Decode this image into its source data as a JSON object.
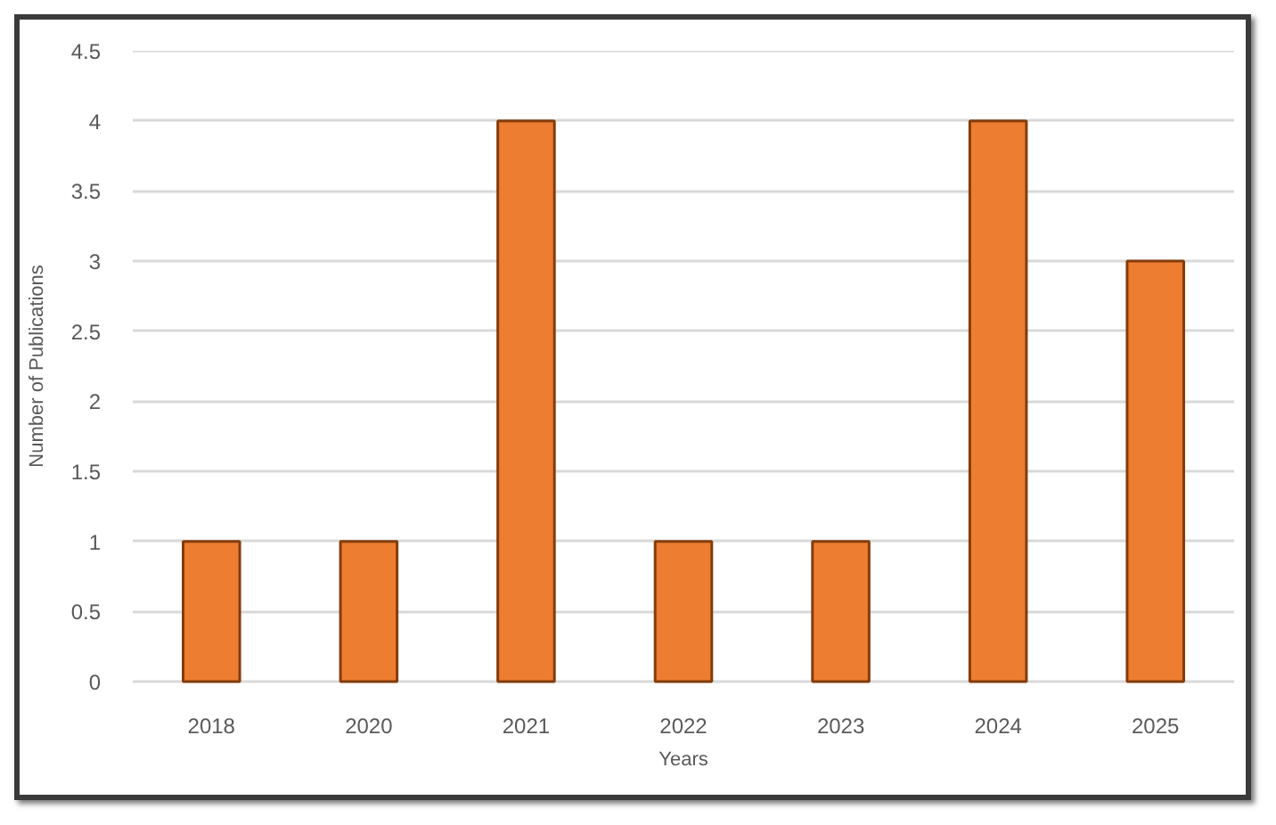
{
  "chart_data": {
    "type": "bar",
    "xlabel": "Years",
    "ylabel": "Number of Publications",
    "categories": [
      "2018",
      "2020",
      "2021",
      "2022",
      "2023",
      "2024",
      "2025"
    ],
    "values": [
      1,
      1,
      4,
      1,
      1,
      4,
      3
    ],
    "color": "#ed7d31",
    "ylim": [
      0,
      4.5
    ],
    "yticks": [
      0,
      0.5,
      1,
      1.5,
      2,
      2.5,
      3,
      3.5,
      4,
      4.5
    ],
    "grid": "y"
  }
}
